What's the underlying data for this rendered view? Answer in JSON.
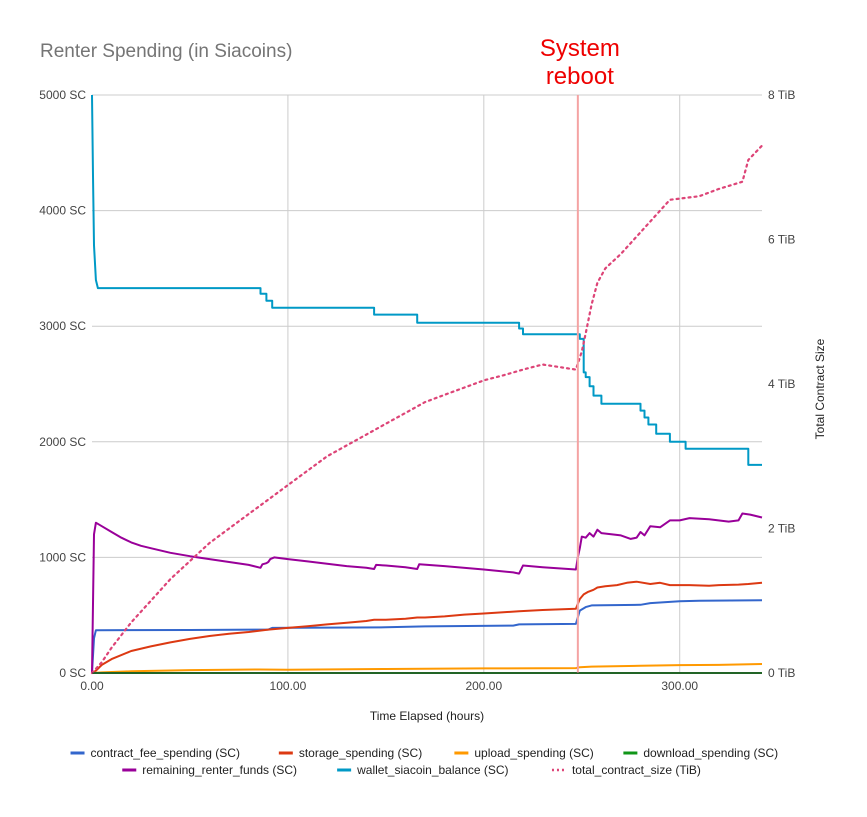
{
  "chart_data": {
    "type": "line",
    "title": "Renter Spending (in Siacoins)",
    "xlabel": "Time Elapsed (hours)",
    "ylabel": "",
    "y2label": "Total Contract Size",
    "xlim": [
      0,
      342
    ],
    "ylim": [
      0,
      5000
    ],
    "y2lim": [
      0,
      8
    ],
    "x_ticks": [
      0,
      100,
      200,
      300
    ],
    "x_tick_labels": [
      "0.00",
      "100.00",
      "200.00",
      "300.00"
    ],
    "y_ticks": [
      0,
      1000,
      2000,
      3000,
      4000,
      5000
    ],
    "y_tick_labels": [
      "0 SC",
      "1000 SC",
      "2000 SC",
      "3000 SC",
      "4000 SC",
      "5000 SC"
    ],
    "y2_ticks": [
      0,
      2,
      4,
      6,
      8
    ],
    "y2_tick_labels": [
      "0 TiB",
      "2 TiB",
      "4 TiB",
      "6 TiB",
      "8 TiB"
    ],
    "grid": true,
    "legend_position": "bottom",
    "annotation": {
      "x": 248,
      "lines": [
        "System",
        "reboot"
      ],
      "color": "#ee0000",
      "line_color": "#f4a3a3"
    },
    "series": [
      {
        "name": "contract_fee_spending (SC)",
        "color": "#3366cc",
        "axis": "left",
        "style": "solid",
        "points": [
          [
            0,
            0
          ],
          [
            1,
            300
          ],
          [
            2,
            370
          ],
          [
            50,
            372
          ],
          [
            90,
            375
          ],
          [
            92,
            390
          ],
          [
            150,
            395
          ],
          [
            170,
            403
          ],
          [
            215,
            410
          ],
          [
            218,
            420
          ],
          [
            247,
            425
          ],
          [
            249,
            540
          ],
          [
            252,
            570
          ],
          [
            255,
            585
          ],
          [
            280,
            590
          ],
          [
            285,
            605
          ],
          [
            300,
            620
          ],
          [
            310,
            625
          ],
          [
            342,
            630
          ]
        ]
      },
      {
        "name": "storage_spending (SC)",
        "color": "#dc3912",
        "axis": "left",
        "style": "solid",
        "points": [
          [
            0,
            0
          ],
          [
            2,
            20
          ],
          [
            5,
            70
          ],
          [
            10,
            120
          ],
          [
            20,
            190
          ],
          [
            30,
            230
          ],
          [
            40,
            265
          ],
          [
            50,
            295
          ],
          [
            60,
            320
          ],
          [
            70,
            340
          ],
          [
            80,
            355
          ],
          [
            90,
            375
          ],
          [
            100,
            390
          ],
          [
            110,
            405
          ],
          [
            120,
            420
          ],
          [
            130,
            435
          ],
          [
            140,
            450
          ],
          [
            144,
            460
          ],
          [
            150,
            460
          ],
          [
            160,
            470
          ],
          [
            166,
            480
          ],
          [
            170,
            480
          ],
          [
            180,
            490
          ],
          [
            190,
            505
          ],
          [
            200,
            515
          ],
          [
            210,
            525
          ],
          [
            218,
            535
          ],
          [
            230,
            545
          ],
          [
            247,
            555
          ],
          [
            249,
            640
          ],
          [
            251,
            680
          ],
          [
            253,
            700
          ],
          [
            256,
            720
          ],
          [
            258,
            740
          ],
          [
            262,
            750
          ],
          [
            268,
            760
          ],
          [
            273,
            780
          ],
          [
            278,
            790
          ],
          [
            285,
            770
          ],
          [
            290,
            780
          ],
          [
            295,
            760
          ],
          [
            305,
            760
          ],
          [
            315,
            755
          ],
          [
            320,
            760
          ],
          [
            330,
            765
          ],
          [
            335,
            770
          ],
          [
            342,
            780
          ]
        ]
      },
      {
        "name": "upload_spending (SC)",
        "color": "#ff9900",
        "axis": "left",
        "style": "solid",
        "points": [
          [
            0,
            0
          ],
          [
            5,
            5
          ],
          [
            20,
            15
          ],
          [
            50,
            25
          ],
          [
            85,
            30
          ],
          [
            100,
            28
          ],
          [
            150,
            35
          ],
          [
            200,
            40
          ],
          [
            247,
            42
          ],
          [
            249,
            50
          ],
          [
            255,
            55
          ],
          [
            280,
            62
          ],
          [
            300,
            68
          ],
          [
            320,
            70
          ],
          [
            342,
            78
          ]
        ]
      },
      {
        "name": "download_spending (SC)",
        "color": "#109618",
        "axis": "left",
        "style": "solid",
        "points": [
          [
            0,
            0
          ],
          [
            342,
            0
          ]
        ]
      },
      {
        "name": "remaining_renter_funds (SC)",
        "color": "#990099",
        "axis": "left",
        "style": "solid",
        "points": [
          [
            0,
            0
          ],
          [
            1,
            1200
          ],
          [
            2,
            1300
          ],
          [
            5,
            1270
          ],
          [
            10,
            1220
          ],
          [
            15,
            1170
          ],
          [
            20,
            1130
          ],
          [
            25,
            1100
          ],
          [
            30,
            1080
          ],
          [
            40,
            1040
          ],
          [
            50,
            1010
          ],
          [
            60,
            985
          ],
          [
            70,
            960
          ],
          [
            80,
            935
          ],
          [
            86,
            910
          ],
          [
            87,
            940
          ],
          [
            89,
            950
          ],
          [
            90,
            960
          ],
          [
            91,
            985
          ],
          [
            93,
            1000
          ],
          [
            100,
            985
          ],
          [
            110,
            965
          ],
          [
            120,
            945
          ],
          [
            130,
            925
          ],
          [
            140,
            910
          ],
          [
            144,
            900
          ],
          [
            145,
            935
          ],
          [
            150,
            930
          ],
          [
            160,
            915
          ],
          [
            166,
            900
          ],
          [
            167,
            940
          ],
          [
            180,
            925
          ],
          [
            200,
            895
          ],
          [
            215,
            870
          ],
          [
            218,
            860
          ],
          [
            220,
            930
          ],
          [
            230,
            915
          ],
          [
            247,
            895
          ],
          [
            248,
            1000
          ],
          [
            249,
            1080
          ],
          [
            250,
            1180
          ],
          [
            252,
            1170
          ],
          [
            254,
            1210
          ],
          [
            256,
            1180
          ],
          [
            258,
            1240
          ],
          [
            260,
            1210
          ],
          [
            265,
            1200
          ],
          [
            270,
            1190
          ],
          [
            275,
            1160
          ],
          [
            278,
            1170
          ],
          [
            280,
            1220
          ],
          [
            282,
            1190
          ],
          [
            285,
            1270
          ],
          [
            290,
            1260
          ],
          [
            295,
            1320
          ],
          [
            300,
            1320
          ],
          [
            305,
            1340
          ],
          [
            315,
            1330
          ],
          [
            325,
            1310
          ],
          [
            330,
            1320
          ],
          [
            332,
            1380
          ],
          [
            336,
            1370
          ],
          [
            342,
            1345
          ]
        ]
      },
      {
        "name": "wallet_siacoin_balance (SC)",
        "color": "#0099c6",
        "axis": "left",
        "style": "solid",
        "steps": true,
        "points": [
          [
            0,
            5000
          ],
          [
            0.5,
            4300
          ],
          [
            1,
            3700
          ],
          [
            2,
            3400
          ],
          [
            3,
            3330
          ],
          [
            86,
            3330
          ],
          [
            86,
            3280
          ],
          [
            89,
            3280
          ],
          [
            89,
            3220
          ],
          [
            92,
            3220
          ],
          [
            92,
            3160
          ],
          [
            144,
            3160
          ],
          [
            144,
            3100
          ],
          [
            166,
            3100
          ],
          [
            166,
            3030
          ],
          [
            218,
            3030
          ],
          [
            218,
            2980
          ],
          [
            220,
            2980
          ],
          [
            220,
            2930
          ],
          [
            249,
            2930
          ],
          [
            249,
            2890
          ],
          [
            251,
            2890
          ],
          [
            251,
            2600
          ],
          [
            252,
            2600
          ],
          [
            252,
            2560
          ],
          [
            254,
            2560
          ],
          [
            254,
            2480
          ],
          [
            256,
            2480
          ],
          [
            256,
            2400
          ],
          [
            260,
            2400
          ],
          [
            260,
            2330
          ],
          [
            280,
            2330
          ],
          [
            280,
            2270
          ],
          [
            282,
            2270
          ],
          [
            282,
            2210
          ],
          [
            284,
            2210
          ],
          [
            284,
            2150
          ],
          [
            288,
            2150
          ],
          [
            288,
            2070
          ],
          [
            295,
            2070
          ],
          [
            295,
            2000
          ],
          [
            303,
            2000
          ],
          [
            303,
            1940
          ],
          [
            335,
            1940
          ],
          [
            335,
            1800
          ],
          [
            342,
            1800
          ]
        ]
      },
      {
        "name": "total_contract_size (TiB)",
        "color": "#dd4477",
        "axis": "right",
        "style": "dotted",
        "points": [
          [
            0,
            0
          ],
          [
            5,
            0.15
          ],
          [
            10,
            0.35
          ],
          [
            20,
            0.7
          ],
          [
            30,
            1.0
          ],
          [
            40,
            1.3
          ],
          [
            50,
            1.55
          ],
          [
            60,
            1.8
          ],
          [
            70,
            2.0
          ],
          [
            80,
            2.2
          ],
          [
            90,
            2.4
          ],
          [
            100,
            2.6
          ],
          [
            110,
            2.8
          ],
          [
            120,
            3.0
          ],
          [
            130,
            3.15
          ],
          [
            140,
            3.3
          ],
          [
            150,
            3.45
          ],
          [
            160,
            3.6
          ],
          [
            170,
            3.75
          ],
          [
            180,
            3.85
          ],
          [
            190,
            3.95
          ],
          [
            200,
            4.05
          ],
          [
            210,
            4.12
          ],
          [
            220,
            4.2
          ],
          [
            230,
            4.27
          ],
          [
            247,
            4.2
          ],
          [
            250,
            4.45
          ],
          [
            252,
            4.7
          ],
          [
            255,
            5.1
          ],
          [
            258,
            5.4
          ],
          [
            262,
            5.6
          ],
          [
            270,
            5.8
          ],
          [
            280,
            6.1
          ],
          [
            290,
            6.4
          ],
          [
            295,
            6.55
          ],
          [
            310,
            6.6
          ],
          [
            320,
            6.7
          ],
          [
            332,
            6.8
          ],
          [
            335,
            7.1
          ],
          [
            342,
            7.3
          ]
        ]
      }
    ]
  }
}
